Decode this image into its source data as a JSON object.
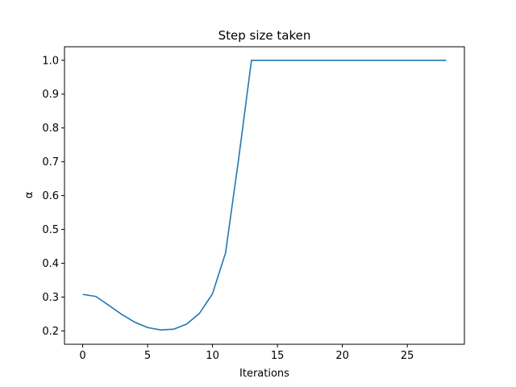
{
  "chart_data": {
    "type": "line",
    "title": "Step size taken",
    "xlabel": "Iterations",
    "ylabel": "α",
    "xlim": [
      -1.4,
      29.4
    ],
    "ylim": [
      0.1605,
      1.04
    ],
    "xticks": [
      0,
      5,
      10,
      15,
      20,
      25
    ],
    "yticks": [
      0.2,
      0.3,
      0.4,
      0.5,
      0.6,
      0.7,
      0.8,
      0.9,
      1.0
    ],
    "xtick_labels": [
      "0",
      "5",
      "10",
      "15",
      "20",
      "25"
    ],
    "ytick_labels": [
      "0.2",
      "0.3",
      "0.4",
      "0.5",
      "0.6",
      "0.7",
      "0.8",
      "0.9",
      "1.0"
    ],
    "grid": false,
    "series": [
      {
        "color": "#1f77b4",
        "x": [
          0,
          1,
          2,
          3,
          4,
          5,
          6,
          7,
          8,
          9,
          10,
          11,
          12,
          13,
          14,
          15,
          16,
          17,
          18,
          19,
          20,
          21,
          22,
          23,
          24,
          25,
          26,
          27,
          28
        ],
        "y": [
          0.308,
          0.302,
          0.276,
          0.249,
          0.226,
          0.21,
          0.203,
          0.205,
          0.22,
          0.252,
          0.31,
          0.43,
          0.705,
          1.0,
          1.0,
          1.0,
          1.0,
          1.0,
          1.0,
          1.0,
          1.0,
          1.0,
          1.0,
          1.0,
          1.0,
          1.0,
          1.0,
          1.0,
          1.0
        ]
      }
    ]
  }
}
